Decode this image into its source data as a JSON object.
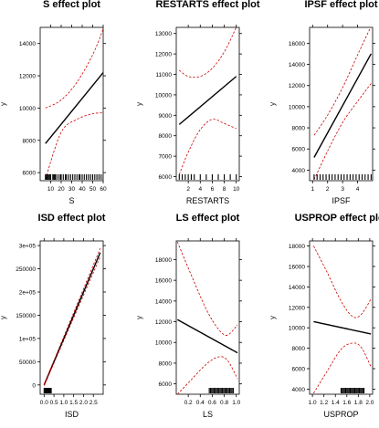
{
  "chart_data": [
    {
      "type": "line",
      "title": "S effect plot",
      "xlabel": "S",
      "ylabel": "y",
      "xlim": [
        0,
        60
      ],
      "ylim": [
        5500,
        15000
      ],
      "xticks": [
        10,
        20,
        30,
        40,
        50,
        60
      ],
      "xtick_labels": [
        "10",
        "20",
        "30",
        "40",
        "50",
        "60"
      ],
      "yticks": [
        6000,
        8000,
        10000,
        12000,
        14000
      ],
      "ytick_labels": [
        "6000",
        "8000",
        "10000",
        "12000",
        "14000"
      ],
      "series": [
        {
          "role": "effect",
          "x": [
            5,
            60
          ],
          "y": [
            7800,
            12200
          ]
        },
        {
          "role": "lower",
          "x": [
            5,
            20,
            35,
            50,
            60
          ],
          "y": [
            5600,
            8500,
            9300,
            9650,
            9700
          ]
        },
        {
          "role": "upper",
          "x": [
            5,
            20,
            35,
            50,
            60
          ],
          "y": [
            10000,
            10500,
            11600,
            13300,
            14900
          ]
        }
      ],
      "rug": [
        5,
        6,
        7,
        8,
        9,
        10,
        12,
        13,
        14,
        15,
        17,
        19,
        20,
        22,
        24,
        25,
        27,
        29,
        31,
        33,
        35,
        37,
        38,
        40,
        42,
        44,
        46,
        48,
        50,
        52,
        54,
        56,
        58,
        60
      ]
    },
    {
      "type": "line",
      "title": "RESTARTS effect plot",
      "xlabel": "RESTARTS",
      "ylabel": "y",
      "xlim": [
        0,
        10.5
      ],
      "ylim": [
        5800,
        13300
      ],
      "xticks": [
        2,
        4,
        6,
        8,
        10
      ],
      "xtick_labels": [
        "2",
        "4",
        "6",
        "8",
        "10"
      ],
      "yticks": [
        6000,
        7000,
        8000,
        9000,
        10000,
        11000,
        12000,
        13000
      ],
      "ytick_labels": [
        "6000",
        "7000",
        "8000",
        "9000",
        "10000",
        "11000",
        "12000",
        "13000"
      ],
      "series": [
        {
          "role": "effect",
          "x": [
            0.5,
            10
          ],
          "y": [
            8550,
            10900
          ]
        },
        {
          "role": "lower",
          "x": [
            0.5,
            2,
            4,
            6,
            8,
            10
          ],
          "y": [
            6100,
            7200,
            8300,
            8800,
            8600,
            8350
          ]
        },
        {
          "role": "upper",
          "x": [
            0.5,
            2,
            4,
            6,
            8,
            10
          ],
          "y": [
            11200,
            10900,
            10900,
            11300,
            12100,
            13300
          ]
        }
      ],
      "rug": [
        0.5,
        1,
        1.5,
        2,
        2.5,
        3,
        4,
        5,
        6,
        7,
        8,
        9,
        10
      ]
    },
    {
      "type": "line",
      "title": "IPSF effect plot",
      "xlabel": "IPSF",
      "ylabel": "y",
      "xlim": [
        0.8,
        5
      ],
      "ylim": [
        3000,
        17500
      ],
      "xticks": [
        1,
        2,
        3,
        4
      ],
      "xtick_labels": [
        "1",
        "2",
        "3",
        "4"
      ],
      "yticks": [
        4000,
        6000,
        8000,
        10000,
        12000,
        14000,
        16000
      ],
      "ytick_labels": [
        "4000",
        "6000",
        "8000",
        "10000",
        "12000",
        "14000",
        "16000"
      ],
      "series": [
        {
          "role": "effect",
          "x": [
            1.1,
            4.9
          ],
          "y": [
            5200,
            15000
          ]
        },
        {
          "role": "lower",
          "x": [
            1.1,
            2,
            3,
            4,
            4.9
          ],
          "y": [
            3100,
            5800,
            8500,
            10500,
            12200
          ]
        },
        {
          "role": "upper",
          "x": [
            1.1,
            2,
            3,
            4,
            4.9
          ],
          "y": [
            7300,
            9200,
            11800,
            14900,
            17600
          ]
        }
      ],
      "rug": [
        1.1,
        1.3,
        1.5,
        1.7,
        1.9,
        2.1,
        2.3,
        2.5,
        2.7,
        2.9,
        3.1,
        3.3,
        3.5,
        3.7,
        3.9,
        4.1,
        4.3,
        4.5,
        4.7,
        4.9
      ]
    },
    {
      "type": "line",
      "title": "ISD effect plot",
      "xlabel": "ISD",
      "ylabel": "y",
      "xlim": [
        -0.2,
        3.0
      ],
      "ylim": [
        -20000,
        310000
      ],
      "xticks": [
        0,
        0.5,
        1,
        1.5,
        2,
        2.5
      ],
      "xtick_labels": [
        "0.0",
        "0.5",
        "1.0",
        "1.5",
        "2.0",
        "2.5"
      ],
      "yticks": [
        0,
        50000,
        100000,
        150000,
        200000,
        250000,
        300000
      ],
      "ytick_labels": [
        "0",
        "50000",
        "1e+05",
        "150000",
        "2e+05",
        "250000",
        "3e+05"
      ],
      "series": [
        {
          "role": "effect",
          "x": [
            0,
            2.85
          ],
          "y": [
            0,
            285000
          ]
        },
        {
          "role": "lower",
          "x": [
            0,
            2.85
          ],
          "y": [
            -1500,
            276000
          ]
        },
        {
          "role": "upper",
          "x": [
            0,
            2.85
          ],
          "y": [
            1500,
            294000
          ]
        }
      ],
      "rug": [
        0.0,
        0.02,
        0.04,
        0.06,
        0.08,
        0.1,
        0.12,
        0.14,
        0.16,
        0.18,
        0.2,
        0.22,
        0.25,
        0.28,
        0.3,
        0.33,
        0.36
      ]
    },
    {
      "type": "line",
      "title": "LS effect plot",
      "xlabel": "LS",
      "ylabel": "y",
      "xlim": [
        0,
        1.05
      ],
      "ylim": [
        5000,
        19800
      ],
      "xticks": [
        0.2,
        0.4,
        0.6,
        0.8,
        1.0
      ],
      "xtick_labels": [
        "0.2",
        "0.4",
        "0.6",
        "0.8",
        "1.0"
      ],
      "yticks": [
        6000,
        8000,
        10000,
        12000,
        14000,
        16000,
        18000
      ],
      "ytick_labels": [
        "6000",
        "8000",
        "10000",
        "12000",
        "14000",
        "16000",
        "18000"
      ],
      "series": [
        {
          "role": "effect",
          "x": [
            0.02,
            1.02
          ],
          "y": [
            12200,
            9000
          ]
        },
        {
          "role": "lower",
          "x": [
            0.02,
            0.25,
            0.5,
            0.7,
            0.85,
            1.02
          ],
          "y": [
            5000,
            6400,
            7900,
            8600,
            8300,
            6500
          ]
        },
        {
          "role": "upper",
          "x": [
            0.02,
            0.25,
            0.5,
            0.7,
            0.85,
            1.02
          ],
          "y": [
            19700,
            16500,
            13200,
            11300,
            10700,
            11700
          ]
        }
      ],
      "rug": [
        0.55,
        0.57,
        0.59,
        0.61,
        0.63,
        0.65,
        0.67,
        0.69,
        0.71,
        0.73,
        0.75,
        0.77,
        0.79,
        0.81,
        0.83,
        0.85,
        0.87,
        0.89,
        0.91,
        0.93,
        0.95
      ]
    },
    {
      "type": "line",
      "title": "USPROP effect plot",
      "xlabel": "USPROP",
      "ylabel": "y",
      "xlim": [
        0.95,
        2.05
      ],
      "ylim": [
        3500,
        18500
      ],
      "xticks": [
        1.0,
        1.2,
        1.4,
        1.6,
        1.8,
        2.0
      ],
      "xtick_labels": [
        "1.0",
        "1.2",
        "1.4",
        "1.6",
        "1.8",
        "2.0"
      ],
      "yticks": [
        4000,
        6000,
        8000,
        10000,
        12000,
        14000,
        16000,
        18000
      ],
      "ytick_labels": [
        "4000",
        "6000",
        "8000",
        "10000",
        "12000",
        "14000",
        "16000",
        "18000"
      ],
      "series": [
        {
          "role": "effect",
          "x": [
            1.02,
            2.02
          ],
          "y": [
            10600,
            9400
          ]
        },
        {
          "role": "lower",
          "x": [
            1.02,
            1.25,
            1.5,
            1.7,
            1.85,
            2.02
          ],
          "y": [
            3600,
            5700,
            7900,
            8500,
            8100,
            6200
          ]
        },
        {
          "role": "upper",
          "x": [
            1.02,
            1.25,
            1.5,
            1.7,
            1.85,
            2.02
          ],
          "y": [
            18000,
            15500,
            12600,
            11100,
            11300,
            12800
          ]
        }
      ],
      "rug": [
        1.5,
        1.52,
        1.54,
        1.56,
        1.58,
        1.6,
        1.62,
        1.64,
        1.66,
        1.68,
        1.7,
        1.72,
        1.74,
        1.76,
        1.78,
        1.8,
        1.82,
        1.84,
        1.86,
        1.88,
        1.9
      ]
    }
  ],
  "colors": {
    "effect_line": "#000000",
    "confidence_band": "#cc0000",
    "rug": "#000000",
    "axes": "#000000"
  }
}
